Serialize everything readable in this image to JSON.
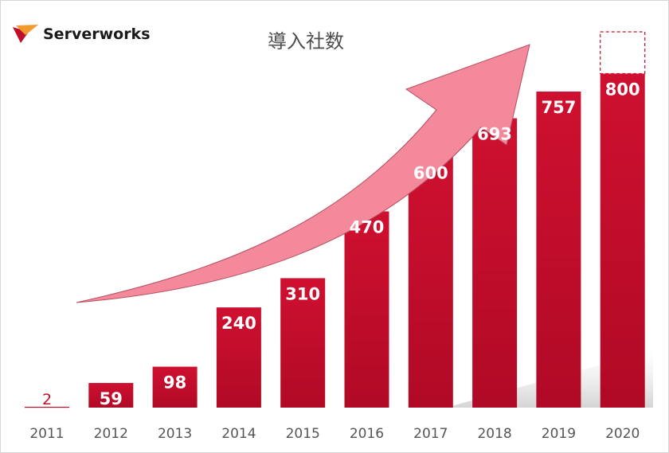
{
  "brand": {
    "name": "Serverworks",
    "accent": "#c00d2c"
  },
  "chart_data": {
    "type": "bar",
    "title": "導入社数",
    "categories": [
      "2011",
      "2012",
      "2013",
      "2014",
      "2015",
      "2016",
      "2017",
      "2018",
      "2019",
      "2020"
    ],
    "values": [
      2,
      59,
      98,
      240,
      310,
      470,
      600,
      693,
      757,
      800
    ],
    "data_labels": [
      "2",
      "59",
      "98",
      "240",
      "310",
      "470",
      "600",
      "693",
      "757",
      "800"
    ],
    "projected_extra": {
      "category": "2020",
      "value": 100
    },
    "ylim": [
      0,
      900
    ],
    "grid": false,
    "trend_arrow": true,
    "bar_color": "#c00d2c",
    "arrow_color": "#f4899c"
  }
}
